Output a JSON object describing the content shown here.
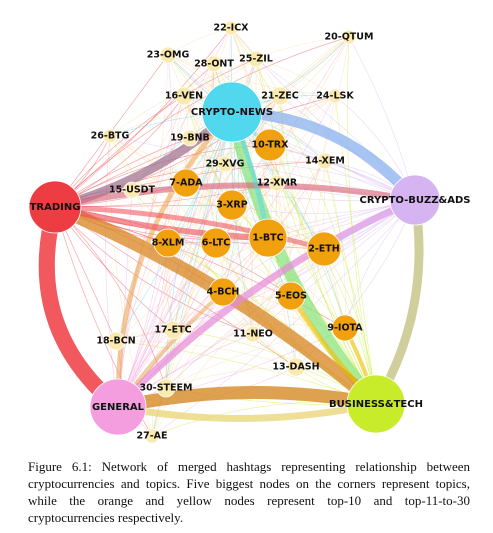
{
  "caption": "Figure 6.1: Network of merged hashtags representing relationship between cryptocurrencies and topics. Five biggest nodes on the corners represent topics, while the orange and yellow nodes represent top-10 and top-11-to-30 cryptocurrencies respectively.",
  "colors": {
    "topic_trading": "#ee3c43",
    "topic_crypto_news": "#52d8ee",
    "topic_crypto_buzz": "#d6b4f2",
    "topic_general": "#f49ee0",
    "topic_business": "#c9ec2a",
    "top10": "#f2a10e",
    "top11_30": "#fbeab0"
  },
  "topics": [
    {
      "id": "trading",
      "label": "TRADING"
    },
    {
      "id": "crypto_news",
      "label": "CRYPTO-NEWS"
    },
    {
      "id": "crypto_buzz",
      "label": "CRYPTO-BUZZ&ADS"
    },
    {
      "id": "general",
      "label": "GENERAL"
    },
    {
      "id": "business",
      "label": "BUSINESS&TECH"
    }
  ],
  "top10": [
    {
      "id": "btc",
      "label": "1-BTC"
    },
    {
      "id": "eth",
      "label": "2-ETH"
    },
    {
      "id": "xrp",
      "label": "3-XRP"
    },
    {
      "id": "bch",
      "label": "4-BCH"
    },
    {
      "id": "eos",
      "label": "5-EOS"
    },
    {
      "id": "ltc",
      "label": "6-LTC"
    },
    {
      "id": "ada",
      "label": "7-ADA"
    },
    {
      "id": "xlm",
      "label": "8-XLM"
    },
    {
      "id": "iota",
      "label": "9-IOTA"
    },
    {
      "id": "trx",
      "label": "10-TRX"
    }
  ],
  "top11_30": [
    {
      "id": "neo",
      "label": "11-NEO"
    },
    {
      "id": "xmr",
      "label": "12-XMR"
    },
    {
      "id": "dash",
      "label": "13-DASH"
    },
    {
      "id": "xem",
      "label": "14-XEM"
    },
    {
      "id": "usdt",
      "label": "15-USDT"
    },
    {
      "id": "ven",
      "label": "16-VEN"
    },
    {
      "id": "etc",
      "label": "17-ETC"
    },
    {
      "id": "bcn",
      "label": "18-BCN"
    },
    {
      "id": "bnb",
      "label": "19-BNB"
    },
    {
      "id": "qtum",
      "label": "20-QTUM"
    },
    {
      "id": "zec",
      "label": "21-ZEC"
    },
    {
      "id": "icx",
      "label": "22-ICX"
    },
    {
      "id": "omg",
      "label": "23-OMG"
    },
    {
      "id": "lsk",
      "label": "24-LSK"
    },
    {
      "id": "zil",
      "label": "25-ZIL"
    },
    {
      "id": "btg",
      "label": "26-BTG"
    },
    {
      "id": "ae",
      "label": "27-AE"
    },
    {
      "id": "ont",
      "label": "28-ONT"
    },
    {
      "id": "xvg",
      "label": "29-XVG"
    },
    {
      "id": "steem",
      "label": "30-STEEM"
    }
  ]
}
